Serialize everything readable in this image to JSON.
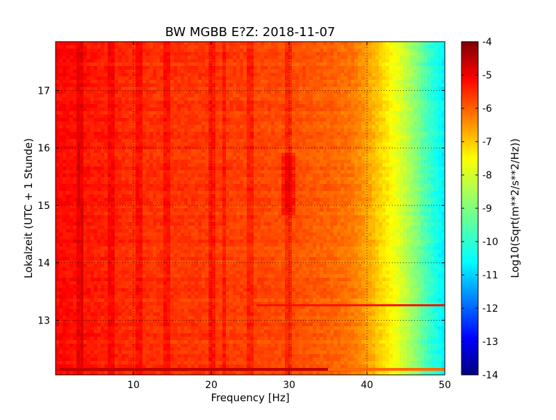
{
  "chart_data": {
    "type": "heatmap",
    "title": "BW MGBB E?Z: 2018-11-07",
    "xlabel": "Frequency [Hz]",
    "ylabel": "Lokalzeit (UTC + 1 Stunde)",
    "xlim": [
      0,
      50
    ],
    "ylim": [
      17.85,
      12.05
    ],
    "x_ticks": [
      "10",
      "20",
      "30",
      "40",
      "50"
    ],
    "y_ticks": [
      "13",
      "14",
      "15",
      "16",
      "17"
    ],
    "grid": true,
    "colormap": "jet",
    "colorbar": {
      "label": "Log10(Sqrt(m**2/s**2/Hz))",
      "range": [
        -14,
        -4
      ],
      "ticks": [
        "-4",
        "-5",
        "-6",
        "-7",
        "-8",
        "-9",
        "-10",
        "-11",
        "-12",
        "-13",
        "-14"
      ]
    },
    "spectrum_profile": {
      "frequency_hz": [
        0,
        5,
        10,
        20,
        25,
        30,
        35,
        38,
        40,
        42,
        44,
        46,
        48,
        50
      ],
      "log10_amplitude": [
        -5.3,
        -5.5,
        -5.7,
        -5.8,
        -5.9,
        -6.0,
        -6.2,
        -6.4,
        -6.8,
        -7.4,
        -8.0,
        -8.8,
        -9.7,
        -10.4
      ]
    },
    "spectral_lines_hz": [
      3.1,
      7.2,
      10.8,
      14.4,
      20.2,
      21.7,
      25.0,
      30.0
    ],
    "events": [
      {
        "time_h": 12.2,
        "description": "broadband transient"
      },
      {
        "time_h": 13.3,
        "description": "narrow band 26–50 Hz"
      },
      {
        "time_h_range": [
          14.8,
          15.9
        ],
        "frequency_hz": 30.0,
        "description": "localized energy near 30 Hz"
      }
    ]
  }
}
